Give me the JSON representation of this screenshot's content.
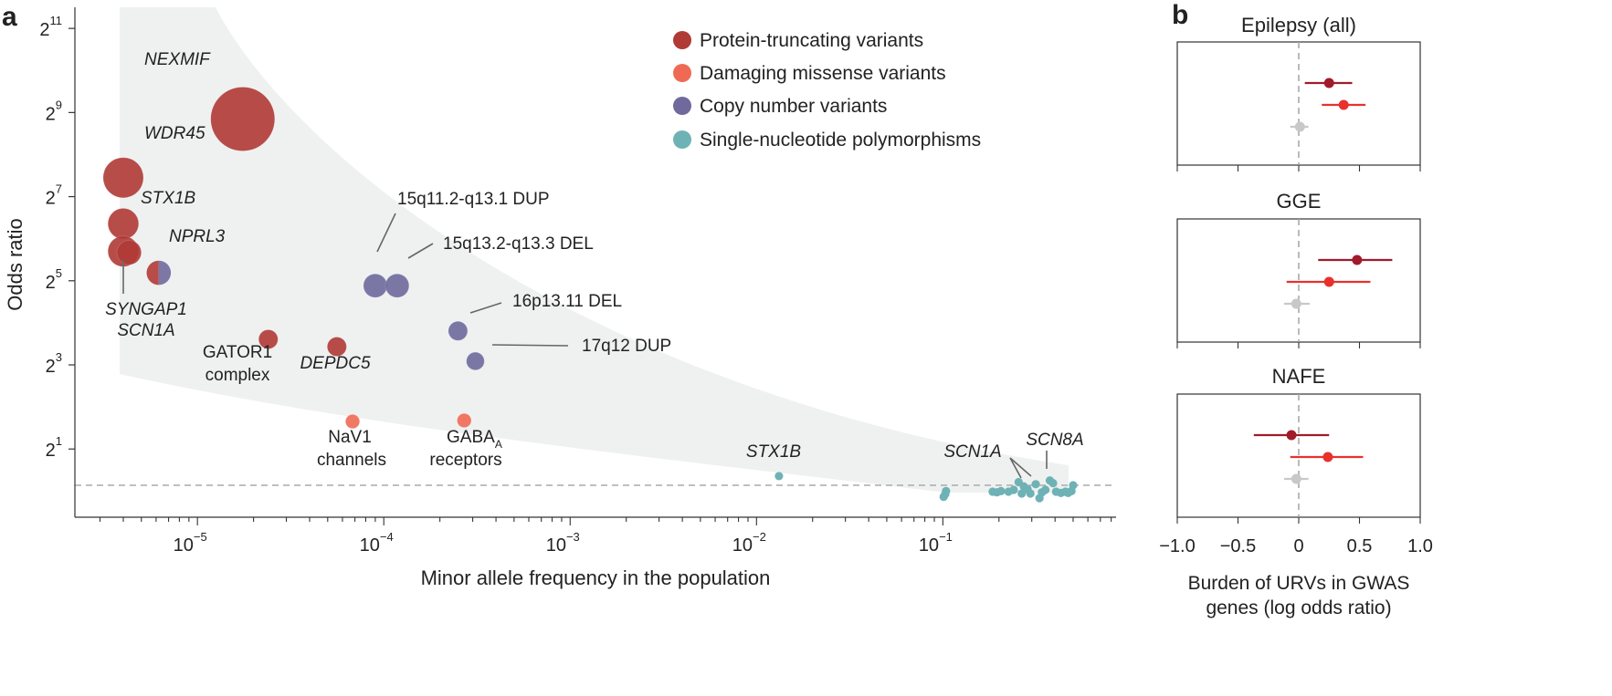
{
  "panel_a": {
    "label": "a",
    "ylabel": "Odds ratio",
    "xlabel": "Minor allele frequency in the population",
    "y_ticks": [
      {
        "base": "2",
        "exp": "1",
        "value": 2
      },
      {
        "base": "2",
        "exp": "3",
        "value": 8
      },
      {
        "base": "2",
        "exp": "5",
        "value": 32
      },
      {
        "base": "2",
        "exp": "7",
        "value": 128
      },
      {
        "base": "2",
        "exp": "9",
        "value": 512
      },
      {
        "base": "2",
        "exp": "11",
        "value": 2048
      }
    ],
    "x_ticks": [
      {
        "base": "10",
        "exp": "−5",
        "value": 1e-05
      },
      {
        "base": "10",
        "exp": "−4",
        "value": 0.0001
      },
      {
        "base": "10",
        "exp": "−3",
        "value": 0.001
      },
      {
        "base": "10",
        "exp": "−2",
        "value": 0.01
      },
      {
        "base": "10",
        "exp": "−1",
        "value": 0.1
      }
    ],
    "legend": [
      {
        "label": "Protein-truncating variants",
        "color": "#b03a36"
      },
      {
        "label": "Damaging missense variants",
        "color": "#ef6a55"
      },
      {
        "label": "Copy number variants",
        "color": "#6f6a9d"
      },
      {
        "label": "Single-nucleotide polymorphisms",
        "color": "#6fb2b5"
      }
    ],
    "annotations": {
      "nexmif": "NEXMIF",
      "wdr45": "WDR45",
      "stx1b": "STX1B",
      "nprl3": "NPRL3",
      "syngap1": "SYNGAP1",
      "scn1a": "SCN1A",
      "gator1_1": "GATOR1",
      "gator1_2": "complex",
      "depdc5": "DEPDC5",
      "nav1_1": "NaV1",
      "nav1_2": "channels",
      "gaba_main": "GABA",
      "gaba_sub": "A",
      "gaba_2": "receptors",
      "dup15": "15q11.2-q13.1 DUP",
      "del15": "15q13.2-q13.3 DEL",
      "del16": "16p13.11 DEL",
      "dup17": "17q12 DUP",
      "stx1b_snp": "STX1B",
      "scn1a_snp": "SCN1A",
      "scn8a_snp": "SCN8A"
    }
  },
  "panel_b": {
    "label": "b",
    "xlabel_line1": "Burden of URVs in GWAS",
    "xlabel_line2": "genes (log odds ratio)",
    "x_ticks": [
      "−1.0",
      "−0.5",
      "0",
      "0.5",
      "1.0"
    ]
  },
  "chart_data": [
    {
      "type": "scatter",
      "xlabel": "Minor allele frequency in the population",
      "ylabel": "Odds ratio",
      "x_scale": "log10",
      "y_scale": "log2",
      "xlim": [
        2.2e-06,
        0.85
      ],
      "ylim": [
        0.65,
        2900
      ],
      "grid": false,
      "reference_line_y": 1,
      "series": [
        {
          "name": "Protein-truncating variants",
          "color": "#b03a36",
          "points": [
            {
              "label": "NEXMIF",
              "x": 1.75e-05,
              "y": 460,
              "size": 1.0
            },
            {
              "label": "WDR45",
              "x": 4e-06,
              "y": 175,
              "size": 0.63
            },
            {
              "label": "STX1B",
              "x": 4e-06,
              "y": 82,
              "size": 0.48
            },
            {
              "label": "SYNGAP1",
              "x": 4e-06,
              "y": 52,
              "size": 0.48
            },
            {
              "label": "SCN1A",
              "x": 4.3e-06,
              "y": 51,
              "size": 0.38
            },
            {
              "label": "GATOR1 complex",
              "x": 2.4e-05,
              "y": 12.2,
              "size": 0.3
            },
            {
              "label": "DEPDC5",
              "x": 5.6e-05,
              "y": 10.8,
              "size": 0.3
            }
          ]
        },
        {
          "name": "Damaging missense variants",
          "color": "#ef6a55",
          "points": [
            {
              "label": "NaV1 channels",
              "x": 6.8e-05,
              "y": 3.15,
              "size": 0.22
            },
            {
              "label": "GABAA receptors",
              "x": 0.00027,
              "y": 3.2,
              "size": 0.22
            }
          ]
        },
        {
          "name": "Copy number variants",
          "color": "#6f6a9d",
          "points": [
            {
              "label": "NPRL3",
              "x": 6.2e-06,
              "y": 36.5,
              "size": 0.38
            },
            {
              "label": "15q11.2-q13.1 DUP",
              "x": 9e-05,
              "y": 29.5,
              "size": 0.37
            },
            {
              "label": "15q13.2-q13.3 DEL",
              "x": 0.000118,
              "y": 29.5,
              "size": 0.37
            },
            {
              "label": "16p13.11 DEL",
              "x": 0.00025,
              "y": 14.0,
              "size": 0.3
            },
            {
              "label": "17q12 DUP",
              "x": 0.00031,
              "y": 8.5,
              "size": 0.28
            }
          ]
        },
        {
          "name": "Single-nucleotide polymorphisms",
          "color": "#6fb2b5",
          "points": [
            {
              "label": "STX1B",
              "x": 0.0132,
              "y": 1.28
            },
            {
              "x": 0.101,
              "y": 0.91
            },
            {
              "x": 0.103,
              "y": 0.95
            },
            {
              "x": 0.104,
              "y": 1.0
            },
            {
              "x": 0.185,
              "y": 0.99
            },
            {
              "x": 0.195,
              "y": 0.98
            },
            {
              "x": 0.205,
              "y": 1.0
            },
            {
              "x": 0.225,
              "y": 0.99
            },
            {
              "x": 0.24,
              "y": 1.02
            },
            {
              "x": 0.255,
              "y": 1.16
            },
            {
              "x": 0.265,
              "y": 0.96
            },
            {
              "x": 0.272,
              "y": 1.08
            },
            {
              "x": 0.285,
              "y": 1.03
            },
            {
              "x": 0.295,
              "y": 0.96
            },
            {
              "label": "SCN1A",
              "x": 0.315,
              "y": 1.12
            },
            {
              "x": 0.33,
              "y": 0.89
            },
            {
              "x": 0.34,
              "y": 0.98
            },
            {
              "x": 0.355,
              "y": 1.02
            },
            {
              "label": "SCN8A",
              "x": 0.375,
              "y": 1.19
            },
            {
              "x": 0.39,
              "y": 1.14
            },
            {
              "x": 0.405,
              "y": 0.99
            },
            {
              "x": 0.43,
              "y": 0.97
            },
            {
              "x": 0.455,
              "y": 0.99
            },
            {
              "x": 0.47,
              "y": 0.97
            },
            {
              "x": 0.49,
              "y": 1.0
            },
            {
              "x": 0.5,
              "y": 1.1
            }
          ]
        }
      ]
    },
    {
      "type": "forest",
      "xlabel": "Burden of URVs in GWAS genes (log odds ratio)",
      "xlim": [
        -1.0,
        1.0
      ],
      "reference_line_x": 0,
      "panels": [
        {
          "title": "Epilepsy (all)",
          "rows": [
            {
              "color": "#a11b2a",
              "est": 0.25,
              "lo": 0.05,
              "hi": 0.44
            },
            {
              "color": "#e8312d",
              "est": 0.37,
              "lo": 0.19,
              "hi": 0.55
            },
            {
              "color": "#c8c8c8",
              "est": 0.01,
              "lo": -0.07,
              "hi": 0.08
            }
          ]
        },
        {
          "title": "GGE",
          "rows": [
            {
              "color": "#a11b2a",
              "est": 0.48,
              "lo": 0.16,
              "hi": 0.77
            },
            {
              "color": "#e8312d",
              "est": 0.25,
              "lo": -0.1,
              "hi": 0.59
            },
            {
              "color": "#c8c8c8",
              "est": -0.02,
              "lo": -0.12,
              "hi": 0.09
            }
          ]
        },
        {
          "title": "NAFE",
          "rows": [
            {
              "color": "#a11b2a",
              "est": -0.06,
              "lo": -0.37,
              "hi": 0.25
            },
            {
              "color": "#e8312d",
              "est": 0.24,
              "lo": -0.07,
              "hi": 0.53
            },
            {
              "color": "#c8c8c8",
              "est": -0.02,
              "lo": -0.12,
              "hi": 0.08
            }
          ]
        }
      ]
    }
  ]
}
